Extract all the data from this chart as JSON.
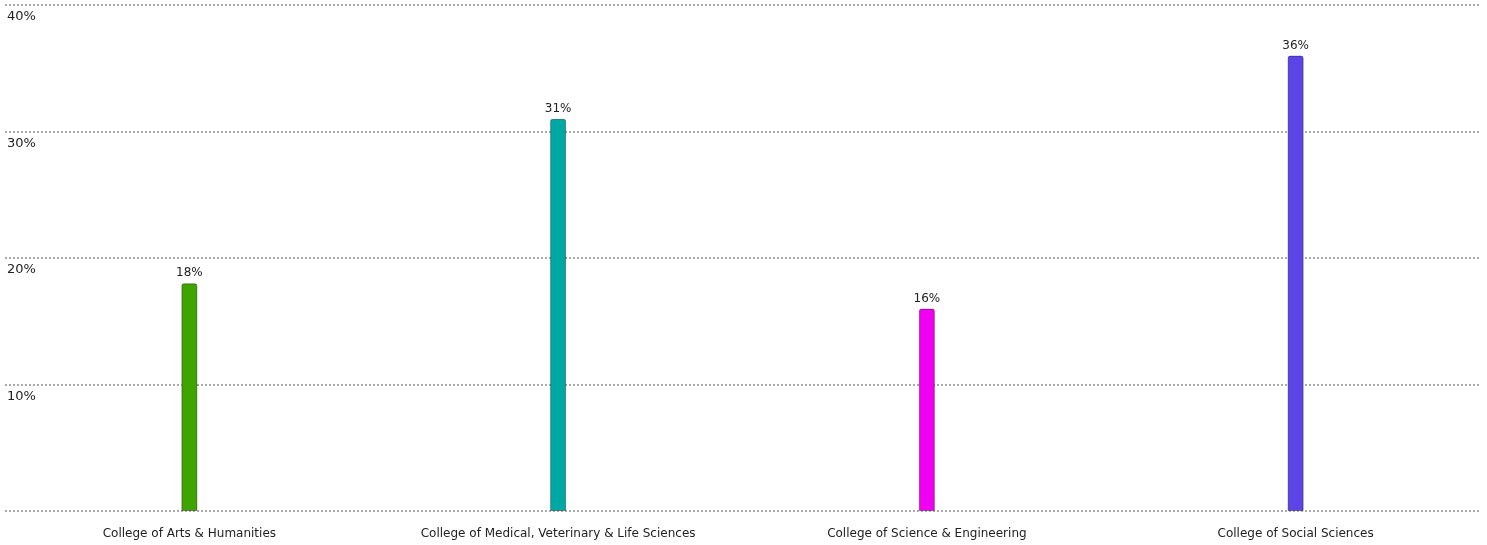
{
  "chart_data": {
    "type": "bar",
    "categories": [
      "College of Arts & Humanities",
      "College of Medical, Veterinary & Life Sciences",
      "College of Science & Engineering",
      "College of Social Sciences"
    ],
    "values": [
      18,
      31,
      16,
      36
    ],
    "value_labels": [
      "18%",
      "31%",
      "16%",
      "36%"
    ],
    "colors": [
      "#3fa300",
      "#00a8a3",
      "#f000f0",
      "#5b45e6"
    ],
    "ylim": [
      0,
      40
    ],
    "yticks": [
      {
        "value": 0,
        "label": null
      },
      {
        "value": 10,
        "label": "10%"
      },
      {
        "value": 20,
        "label": "20%"
      },
      {
        "value": 30,
        "label": "30%"
      },
      {
        "value": 40,
        "label": "40%"
      }
    ],
    "grid": "y"
  }
}
